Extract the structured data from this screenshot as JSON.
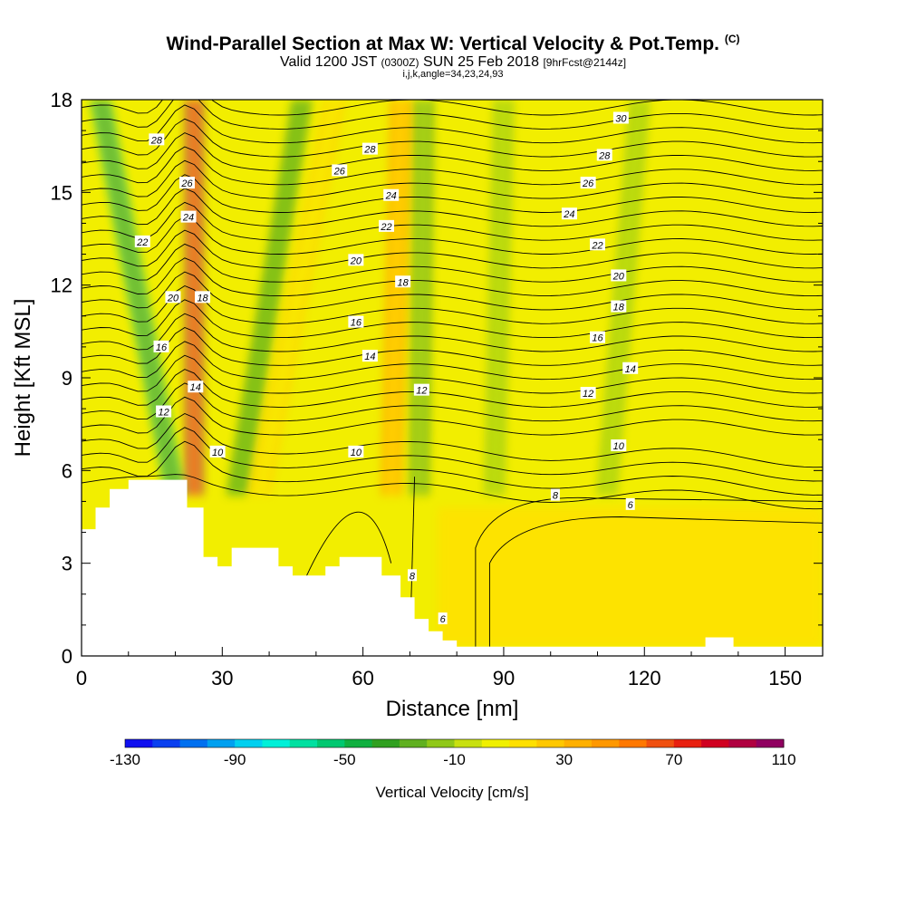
{
  "header": {
    "title": "Wind-Parallel Section at Max W: Vertical Velocity & Pot.Temp.",
    "title_tag": "(C)",
    "valid_prefix": "Valid 1200 JST",
    "valid_utc": "(0300Z)",
    "valid_date": "SUN 25 Feb 2018",
    "forecast": "[9hrFcst@2144z]",
    "indices": "i,j,k,angle=34,23,24,93"
  },
  "chart_data": {
    "type": "heatmap",
    "xlabel": "Distance [nm]",
    "ylabel": "Height [Kft MSL]",
    "xlim": [
      0,
      158
    ],
    "ylim": [
      0,
      18
    ],
    "x_ticks": [
      0,
      30,
      60,
      90,
      120,
      150
    ],
    "y_ticks": [
      0,
      3,
      6,
      9,
      12,
      15,
      18
    ],
    "colorbar": {
      "title": "Vertical Velocity [cm/s]",
      "min": -130,
      "max": 110,
      "step": 10,
      "labels": [
        -130,
        -90,
        -50,
        -10,
        30,
        70,
        110
      ],
      "colors": [
        "#1010f0",
        "#0a40f0",
        "#0070f0",
        "#00a0f0",
        "#00d0f0",
        "#00f0d8",
        "#00e0a0",
        "#00c870",
        "#10b040",
        "#30a020",
        "#60b020",
        "#90c818",
        "#c8e010",
        "#f0f000",
        "#ffe000",
        "#ffc800",
        "#ffb000",
        "#ff9800",
        "#ff7800",
        "#f05010",
        "#e82010",
        "#d00020",
        "#b00040",
        "#900060"
      ]
    },
    "terrain_kft": [
      [
        0,
        4.1
      ],
      [
        3,
        4.1
      ],
      [
        3,
        4.8
      ],
      [
        6,
        4.8
      ],
      [
        6,
        5.4
      ],
      [
        10,
        5.4
      ],
      [
        10,
        5.7
      ],
      [
        22.5,
        5.7
      ],
      [
        22.5,
        4.8
      ],
      [
        26,
        4.8
      ],
      [
        26,
        3.2
      ],
      [
        29,
        3.2
      ],
      [
        29,
        2.9
      ],
      [
        32,
        2.9
      ],
      [
        32,
        3.5
      ],
      [
        42,
        3.5
      ],
      [
        42,
        2.9
      ],
      [
        45,
        2.9
      ],
      [
        45,
        2.6
      ],
      [
        52,
        2.6
      ],
      [
        52,
        2.9
      ],
      [
        55,
        2.9
      ],
      [
        55,
        3.2
      ],
      [
        64,
        3.2
      ],
      [
        64,
        2.6
      ],
      [
        68,
        2.6
      ],
      [
        68,
        1.9
      ],
      [
        71,
        1.9
      ],
      [
        71,
        1.2
      ],
      [
        74,
        1.2
      ],
      [
        74,
        0.8
      ],
      [
        77,
        0.8
      ],
      [
        77,
        0.5
      ],
      [
        80,
        0.5
      ],
      [
        80,
        0.3
      ],
      [
        84,
        0.3
      ],
      [
        84,
        0.3
      ],
      [
        133,
        0.3
      ],
      [
        133,
        0.6
      ],
      [
        139,
        0.6
      ],
      [
        139,
        0.3
      ],
      [
        158,
        0.3
      ]
    ],
    "updraft_bands": [
      {
        "x_bottom": 24,
        "x_top": 24,
        "peak_cm_s": 110
      },
      {
        "x_bottom": 66,
        "x_top": 68,
        "peak_cm_s": 45
      },
      {
        "x_bottom": 38,
        "x_top": 54,
        "peak_cm_s": 25
      }
    ],
    "downdraft_bands": [
      {
        "x_bottom": 20,
        "x_top": 4,
        "peak_cm_s": -60
      },
      {
        "x_bottom": 33,
        "x_top": 47,
        "peak_cm_s": -40
      },
      {
        "x_bottom": 72,
        "x_top": 73,
        "peak_cm_s": -30
      },
      {
        "x_bottom": 88,
        "x_top": 90,
        "peak_cm_s": -15
      },
      {
        "x_bottom": 112,
        "x_top": 119,
        "peak_cm_s": -15
      }
    ],
    "theta_contour_labels": [
      {
        "value": "28",
        "x": 16,
        "y": 16.7
      },
      {
        "value": "26",
        "x": 22.5,
        "y": 15.3
      },
      {
        "value": "24",
        "x": 22.8,
        "y": 14.2
      },
      {
        "value": "22",
        "x": 13,
        "y": 13.4
      },
      {
        "value": "20",
        "x": 19.5,
        "y": 11.6
      },
      {
        "value": "18",
        "x": 25.8,
        "y": 11.6
      },
      {
        "value": "16",
        "x": 17,
        "y": 10.0
      },
      {
        "value": "14",
        "x": 24.3,
        "y": 8.7
      },
      {
        "value": "12",
        "x": 17.5,
        "y": 7.9
      },
      {
        "value": "10",
        "x": 29,
        "y": 6.6
      },
      {
        "value": "30",
        "x": 115,
        "y": 17.4
      },
      {
        "value": "28",
        "x": 61.5,
        "y": 16.4
      },
      {
        "value": "28",
        "x": 111.5,
        "y": 16.2
      },
      {
        "value": "26",
        "x": 55,
        "y": 15.7
      },
      {
        "value": "26",
        "x": 108,
        "y": 15.3
      },
      {
        "value": "24",
        "x": 66,
        "y": 14.9
      },
      {
        "value": "24",
        "x": 104,
        "y": 14.3
      },
      {
        "value": "22",
        "x": 65,
        "y": 13.9
      },
      {
        "value": "22",
        "x": 110,
        "y": 13.3
      },
      {
        "value": "20",
        "x": 58.5,
        "y": 12.8
      },
      {
        "value": "20",
        "x": 114.5,
        "y": 12.3
      },
      {
        "value": "18",
        "x": 68.5,
        "y": 12.1
      },
      {
        "value": "18",
        "x": 114.5,
        "y": 11.3
      },
      {
        "value": "16",
        "x": 58.5,
        "y": 10.8
      },
      {
        "value": "16",
        "x": 110,
        "y": 10.3
      },
      {
        "value": "14",
        "x": 61.5,
        "y": 9.7
      },
      {
        "value": "14",
        "x": 117,
        "y": 9.3
      },
      {
        "value": "12",
        "x": 72.5,
        "y": 8.6
      },
      {
        "value": "12",
        "x": 108,
        "y": 8.5
      },
      {
        "value": "10",
        "x": 58.5,
        "y": 6.6
      },
      {
        "value": "10",
        "x": 114.5,
        "y": 6.8
      },
      {
        "value": "8",
        "x": 101,
        "y": 5.2
      },
      {
        "value": "6",
        "x": 117,
        "y": 4.9
      },
      {
        "value": "8",
        "x": 70.5,
        "y": 2.6
      },
      {
        "value": "6",
        "x": 77,
        "y": 1.2
      }
    ],
    "theta_contour_count": 28,
    "grid": false
  }
}
